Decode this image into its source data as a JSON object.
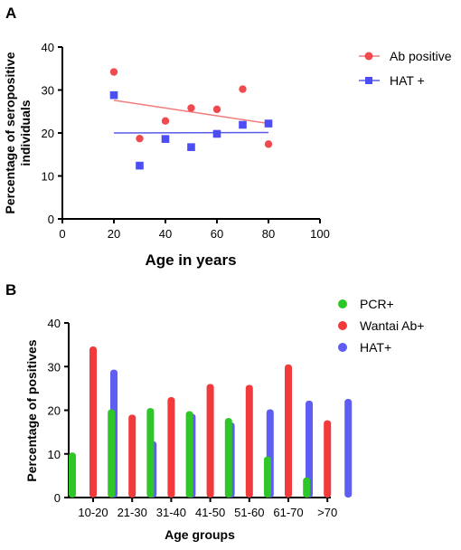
{
  "panels": {
    "a_label": "A",
    "b_label": "B"
  },
  "colors": {
    "red": "#f04a4f",
    "red_line": "#f07c7c",
    "blue": "#4d4df5",
    "blue_line": "#5a5ae8",
    "green": "#2fc62a",
    "bar_red": "#f23a3a",
    "bar_blue": "#5e5ef2"
  },
  "chart_data": [
    {
      "type": "scatter",
      "title": "",
      "xlabel": "Age in years",
      "ylabel": "Percentage of seropositive individuals",
      "ylabel_lines": [
        "Percentage of seropositive",
        "individuals"
      ],
      "xlim": [
        0,
        100
      ],
      "ylim": [
        0,
        40
      ],
      "xticks": [
        0,
        20,
        40,
        60,
        80,
        100
      ],
      "yticks": [
        0,
        10,
        20,
        30,
        40
      ],
      "grid": false,
      "legend_position": "top-right",
      "series": [
        {
          "name": "Ab positive",
          "marker": "circle",
          "color": "#f04a4f",
          "x": [
            20,
            30,
            40,
            50,
            60,
            70,
            80
          ],
          "y": [
            34.2,
            18.7,
            22.8,
            25.8,
            25.5,
            30.2,
            17.4
          ],
          "trendline": {
            "x": [
              20,
              80
            ],
            "y": [
              27.6,
              22.2
            ]
          }
        },
        {
          "name": "HAT +",
          "marker": "square",
          "color": "#4d4df5",
          "x": [
            20,
            30,
            40,
            50,
            60,
            70,
            80
          ],
          "y": [
            28.8,
            12.4,
            18.6,
            16.7,
            19.8,
            21.9,
            22.2
          ],
          "trendline": {
            "x": [
              20,
              80
            ],
            "y": [
              20.0,
              20.1
            ]
          }
        }
      ]
    },
    {
      "type": "bar",
      "title": "",
      "xlabel": "Age groups",
      "ylabel": "Percentage of positives",
      "ylim": [
        0,
        40
      ],
      "yticks": [
        0,
        10,
        20,
        30,
        40
      ],
      "grid": false,
      "legend_position": "top-right",
      "categories": [
        "10-20",
        "21-30",
        "31-40",
        "41-50",
        "51-60",
        "61-70",
        ">70"
      ],
      "series": [
        {
          "name": "PCR+",
          "color": "#2fc62a",
          "values": [
            10.3,
            20.2,
            20.5,
            19.8,
            18.2,
            9.4,
            4.6
          ]
        },
        {
          "name": "Wantai Ab+",
          "color": "#f23a3a",
          "values": [
            34.6,
            19.0,
            23.0,
            26.0,
            25.8,
            30.5,
            17.7
          ]
        },
        {
          "name": "HAT+",
          "color": "#5e5ef2",
          "values": [
            29.3,
            12.9,
            19.2,
            17.2,
            20.2,
            22.2,
            22.6
          ]
        }
      ]
    }
  ]
}
